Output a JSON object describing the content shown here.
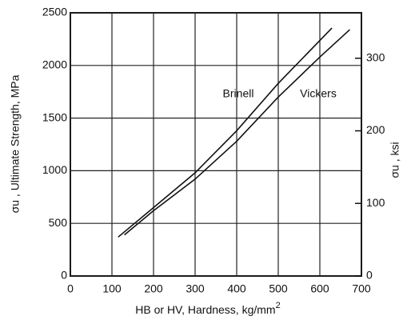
{
  "chart_data": {
    "type": "line",
    "ylabel": "σu , Ultimate Strength, MPa",
    "y2label": "σu , ksi",
    "xlabel": "HB  or HV, Hardness, kg/mm",
    "xlabel_exponent": "2",
    "xlim": [
      0,
      700
    ],
    "xticks": [
      0,
      100,
      200,
      300,
      400,
      500,
      600,
      700
    ],
    "ylim": [
      0,
      2500
    ],
    "yticks": [
      0,
      500,
      1000,
      1500,
      2000,
      2500
    ],
    "y2lim": [
      0,
      362.6
    ],
    "y2ticks": [
      0,
      100,
      200,
      300
    ],
    "grid": true,
    "series": [
      {
        "name": "Brinell",
        "color": "#111111",
        "x": [
          115,
          200,
          300,
          400,
          500,
          629
        ],
        "values": [
          370,
          650,
          980,
          1380,
          1830,
          2355
        ]
      },
      {
        "name": "Vickers",
        "color": "#111111",
        "x": [
          130,
          200,
          300,
          400,
          500,
          600,
          672
        ],
        "values": [
          390,
          620,
          920,
          1280,
          1700,
          2080,
          2340
        ]
      }
    ]
  }
}
